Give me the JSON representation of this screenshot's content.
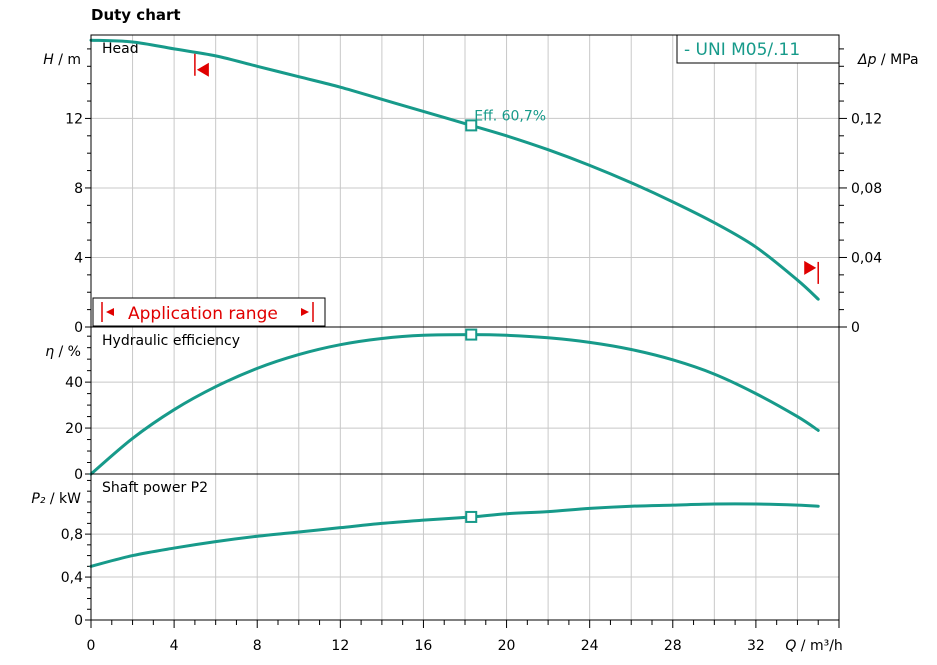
{
  "chart_data": {
    "title": "Duty chart",
    "type": "line",
    "colors": {
      "curve": "#179a8a",
      "marker": "#e00000",
      "grid": "#c8c8c8",
      "axis": "#000000"
    },
    "pump_label": "-   UNI M05/.11",
    "x": {
      "label_var": "Q",
      "label_unit": "/ m³/h",
      "ticks": [
        0,
        4,
        8,
        12,
        16,
        20,
        24,
        28,
        32
      ],
      "range": [
        0,
        36
      ]
    },
    "operating_point_q": 18.3,
    "panels": [
      {
        "name": "head",
        "title": "Head",
        "ylabel_var": "H",
        "ylabel_unit": "/ m",
        "range": [
          0,
          16.8
        ],
        "ticks": [
          0,
          4,
          8,
          12
        ],
        "tick_labels": [
          "0",
          "4",
          "8",
          "12"
        ],
        "right_axis": {
          "label_var": "Δp",
          "label_unit": "/ MPa",
          "ticks": [
            0,
            0.04,
            0.08,
            0.12
          ],
          "tick_labels": [
            "0",
            "0,04",
            "0,08",
            "0,12"
          ],
          "scale": 100
        },
        "curve": {
          "x": [
            0,
            2,
            4,
            6,
            8,
            10,
            12,
            14,
            16,
            18.3,
            20,
            22,
            24,
            26,
            28,
            30,
            32,
            34,
            35
          ],
          "y": [
            16.5,
            16.4,
            16.0,
            15.6,
            15.0,
            14.4,
            13.8,
            13.1,
            12.4,
            11.6,
            11.0,
            10.2,
            9.3,
            8.3,
            7.2,
            6.0,
            4.6,
            2.7,
            1.6
          ]
        },
        "operating_label": "Eff.  60,7%",
        "application_range": {
          "label": "Application range",
          "from": 5.0,
          "to": 35.0,
          "marker_left_h": 14.8,
          "marker_right_h": 3.4
        }
      },
      {
        "name": "efficiency",
        "title": "Hydraulic efficiency",
        "ylabel_var": "η",
        "ylabel_unit": "/ %",
        "range": [
          0,
          64
        ],
        "ticks": [
          0,
          20,
          40
        ],
        "tick_labels": [
          "0",
          "20",
          "40"
        ],
        "curve": {
          "x": [
            0,
            2,
            4,
            6,
            8,
            10,
            12,
            14,
            16,
            18.3,
            20,
            22,
            24,
            26,
            28,
            30,
            32,
            34,
            35
          ],
          "y": [
            0,
            15.5,
            28,
            38,
            46,
            52,
            56.3,
            59,
            60.4,
            60.7,
            60.4,
            59.3,
            57.3,
            54.2,
            49.7,
            43.5,
            35.0,
            25.0,
            19.0
          ]
        }
      },
      {
        "name": "power",
        "title": "Shaft power P2",
        "ylabel_var": "P₂",
        "ylabel_unit": "/ kW",
        "range": [
          0,
          1.36
        ],
        "ticks": [
          0,
          0.4,
          0.8
        ],
        "tick_labels": [
          "0",
          "0,4",
          "0,8"
        ],
        "curve": {
          "x": [
            0,
            2,
            4,
            6,
            8,
            10,
            12,
            14,
            16,
            18.3,
            20,
            22,
            24,
            26,
            28,
            30,
            32,
            34,
            35
          ],
          "y": [
            0.5,
            0.6,
            0.67,
            0.73,
            0.78,
            0.82,
            0.86,
            0.9,
            0.93,
            0.96,
            0.99,
            1.01,
            1.04,
            1.06,
            1.07,
            1.08,
            1.08,
            1.07,
            1.06
          ]
        }
      }
    ]
  }
}
